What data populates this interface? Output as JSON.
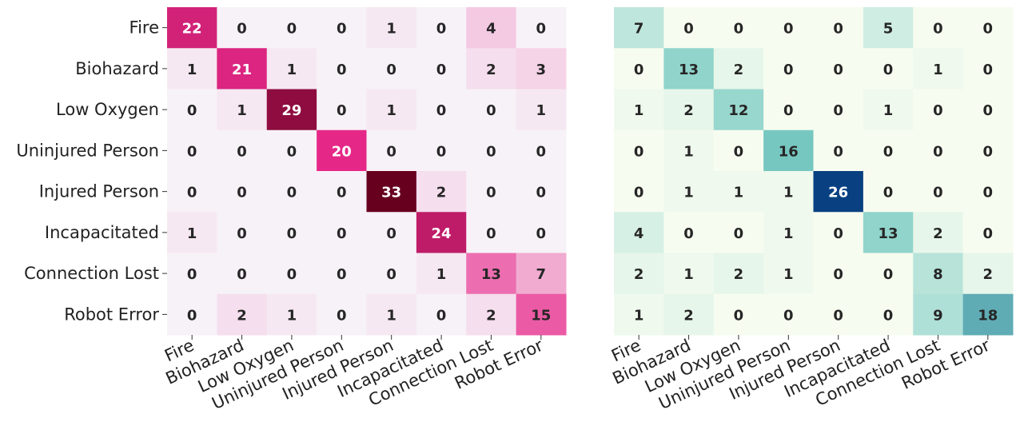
{
  "chart_data": [
    {
      "type": "heatmap",
      "title": "",
      "xlabel": "",
      "ylabel": "",
      "colormap": "pink-purple",
      "colors": {
        "low": "#f7f2f8",
        "mid": "#e7298a",
        "high": "#67001f"
      },
      "vmin": 0,
      "vmax": 33,
      "row_labels": [
        "Fire",
        "Biohazard",
        "Low Oxygen",
        "Uninjured Person",
        "Injured Person",
        "Incapacitated",
        "Connection Lost",
        "Robot Error"
      ],
      "col_labels": [
        "Fire",
        "Biohazard",
        "Low Oxygen",
        "Uninjured Person",
        "Injured Person",
        "Incapacitated",
        "Connection Lost",
        "Robot Error"
      ],
      "values": [
        [
          22,
          0,
          0,
          0,
          1,
          0,
          4,
          0
        ],
        [
          1,
          21,
          1,
          0,
          0,
          0,
          2,
          3
        ],
        [
          0,
          1,
          29,
          0,
          1,
          0,
          0,
          1
        ],
        [
          0,
          0,
          0,
          20,
          0,
          0,
          0,
          0
        ],
        [
          0,
          0,
          0,
          0,
          33,
          2,
          0,
          0
        ],
        [
          1,
          0,
          0,
          0,
          0,
          24,
          0,
          0
        ],
        [
          0,
          0,
          0,
          0,
          0,
          1,
          13,
          7
        ],
        [
          0,
          2,
          1,
          0,
          1,
          0,
          2,
          15
        ]
      ],
      "grid": false,
      "colorbar": false
    },
    {
      "type": "heatmap",
      "title": "",
      "xlabel": "",
      "ylabel": "",
      "colormap": "green-blue",
      "colors": {
        "low": "#f7fcf0",
        "mid": "#7bccc4",
        "high": "#084081"
      },
      "vmin": 0,
      "vmax": 26,
      "row_labels": [],
      "col_labels": [
        "Fire",
        "Biohazard",
        "Low Oxygen",
        "Uninjured Person",
        "Injured Person",
        "Incapacitated",
        "Connection Lost",
        "Robot Error"
      ],
      "values": [
        [
          7,
          0,
          0,
          0,
          0,
          5,
          0,
          0
        ],
        [
          0,
          13,
          2,
          0,
          0,
          0,
          1,
          0
        ],
        [
          1,
          2,
          12,
          0,
          0,
          1,
          0,
          0
        ],
        [
          0,
          1,
          0,
          16,
          0,
          0,
          0,
          0
        ],
        [
          0,
          1,
          1,
          1,
          26,
          0,
          0,
          0
        ],
        [
          4,
          0,
          0,
          1,
          0,
          13,
          2,
          0
        ],
        [
          2,
          1,
          2,
          1,
          0,
          0,
          8,
          2
        ],
        [
          1,
          2,
          0,
          0,
          0,
          0,
          9,
          18
        ]
      ],
      "grid": false,
      "colorbar": false
    }
  ]
}
